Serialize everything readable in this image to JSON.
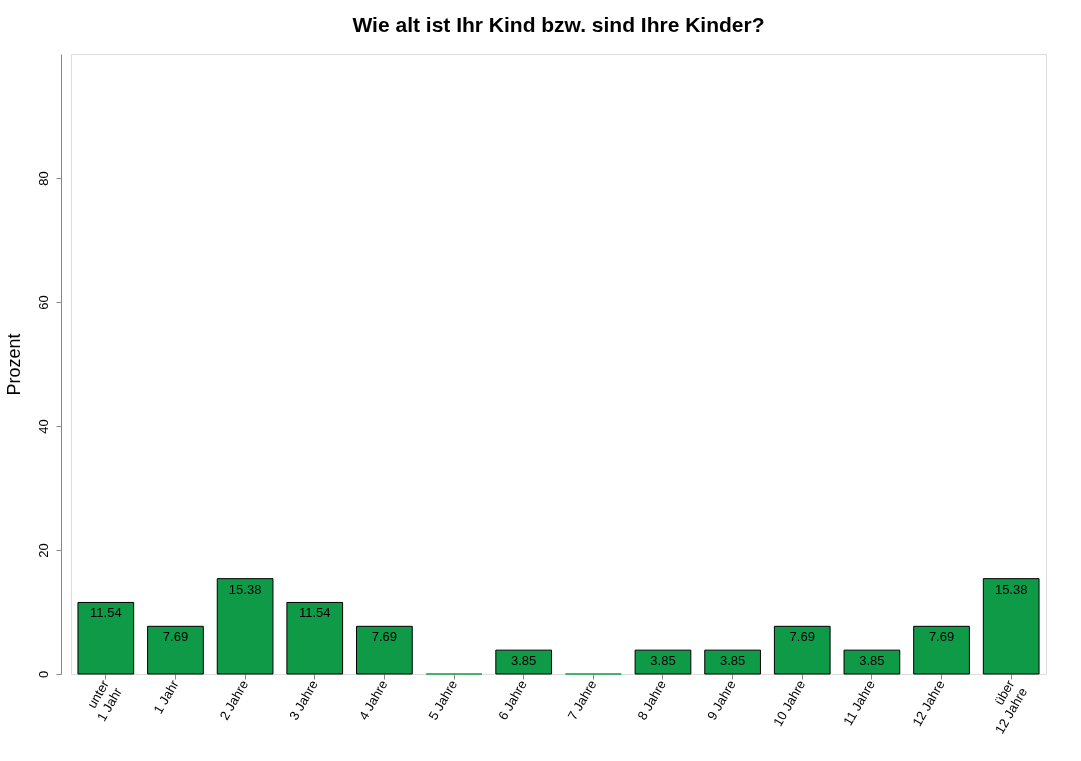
{
  "chart_data": {
    "type": "bar",
    "title": "Wie alt ist Ihr Kind bzw. sind Ihre Kinder?",
    "ylabel": "Prozent",
    "categories": [
      "unter\n1 Jahr",
      "1 Jahr",
      "2 Jahre",
      "3 Jahre",
      "4 Jahre",
      "5 Jahre",
      "6 Jahre",
      "7 Jahre",
      "8 Jahre",
      "9 Jahre",
      "10 Jahre",
      "11 Jahre",
      "12 Jahre",
      "über\n12 Jahre"
    ],
    "values": [
      11.54,
      7.69,
      15.38,
      11.54,
      7.69,
      0,
      3.85,
      0,
      3.85,
      3.85,
      7.69,
      3.85,
      7.69,
      15.38
    ],
    "value_labels": [
      "11.54",
      "7.69",
      "15.38",
      "11.54",
      "7.69",
      null,
      "3.85",
      null,
      "3.85",
      "3.85",
      "7.69",
      "3.85",
      "7.69",
      "15.38"
    ],
    "color": "#0f9a48",
    "ylim": [
      0,
      100
    ],
    "yticks": [
      0,
      20,
      40,
      60,
      80
    ],
    "grid": false
  }
}
